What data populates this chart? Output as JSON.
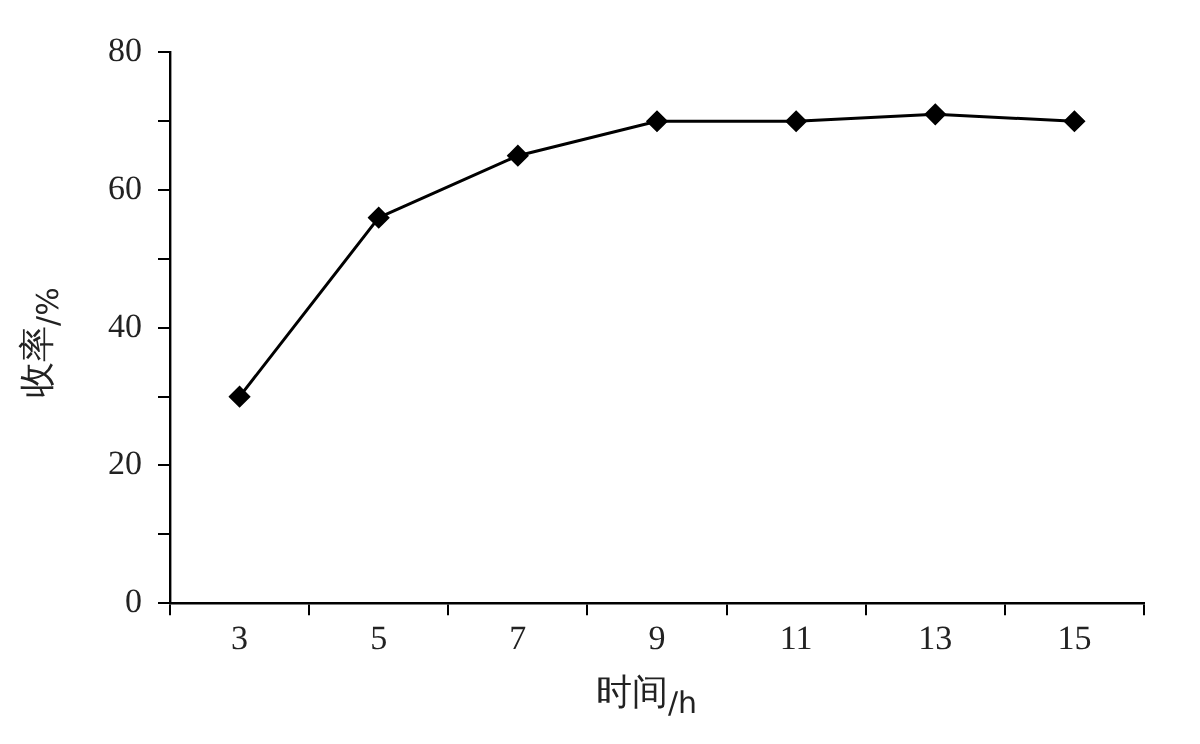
{
  "chart_data": {
    "type": "line",
    "xlabel": "时间$_{/h}$",
    "ylabel": "收率$_{/%}$",
    "categories": [
      "3",
      "5",
      "7",
      "9",
      "11",
      "13",
      "15"
    ],
    "series": [
      {
        "color": "#000000",
        "values": [
          30,
          56,
          65,
          70,
          70,
          71,
          70
        ]
      }
    ],
    "ylim": [
      0,
      80
    ],
    "yticks": [
      0,
      {
        "value": 10,
        "label": null
      },
      20,
      {
        "value": 30,
        "label": null
      },
      40,
      {
        "value": 50,
        "label": null
      },
      60,
      {
        "value": 70,
        "label": null
      },
      80
    ],
    "grid": false,
    "legend": false,
    "marker": "diamond",
    "line_style": "solid"
  }
}
